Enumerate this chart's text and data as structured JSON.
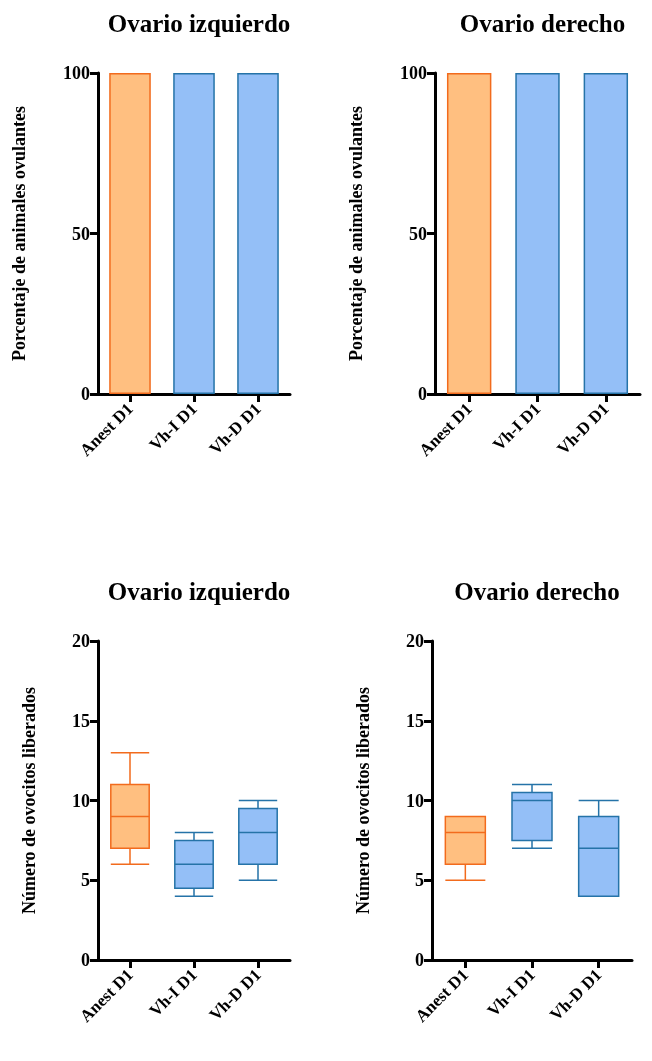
{
  "chart_data": [
    {
      "type": "bar",
      "title": "Ovario izquierdo",
      "ylabel": "Porcentaje de animales ovulantes",
      "categories": [
        "Anest D1",
        "Vh-I D1",
        "Vh-D D1"
      ],
      "values": [
        100,
        100,
        100
      ],
      "colors": [
        "#ffbf80",
        "#94bff7",
        "#94bff7"
      ],
      "ylim": [
        0,
        100
      ],
      "yticks": [
        0,
        50,
        100
      ]
    },
    {
      "type": "bar",
      "title": "Ovario derecho",
      "ylabel": "Porcentaje de animales ovulantes",
      "categories": [
        "Anest D1",
        "Vh-I D1",
        "Vh-D D1"
      ],
      "values": [
        100,
        100,
        100
      ],
      "colors": [
        "#ffbf80",
        "#94bff7",
        "#94bff7"
      ],
      "ylim": [
        0,
        100
      ],
      "yticks": [
        0,
        50,
        100
      ]
    },
    {
      "type": "box",
      "title": "Ovario izquierdo",
      "ylabel": "Número de ovocitos liberados",
      "categories": [
        "Anest D1",
        "Vh-I D1",
        "Vh-D D1"
      ],
      "colors": [
        "#ffbf80",
        "#94bff7",
        "#94bff7"
      ],
      "ylim": [
        0,
        20
      ],
      "yticks": [
        0,
        5,
        10,
        15,
        20
      ],
      "boxes": [
        {
          "low": 6,
          "q1": 7,
          "median": 9,
          "q3": 11,
          "high": 13
        },
        {
          "low": 4,
          "q1": 4.5,
          "median": 6,
          "q3": 7.5,
          "high": 8
        },
        {
          "low": 5,
          "q1": 6,
          "median": 8,
          "q3": 9.5,
          "high": 10
        }
      ]
    },
    {
      "type": "box",
      "title": "Ovario derecho",
      "ylabel": "Número de ovocitos liberados",
      "categories": [
        "Anest D1",
        "Vh-I D1",
        "Vh-D D1"
      ],
      "colors": [
        "#ffbf80",
        "#94bff7",
        "#94bff7"
      ],
      "ylim": [
        0,
        20
      ],
      "yticks": [
        0,
        5,
        10,
        15,
        20
      ],
      "boxes": [
        {
          "low": 5,
          "q1": 6,
          "median": 8,
          "q3": 9,
          "high": 9
        },
        {
          "low": 7,
          "q1": 7.5,
          "median": 10,
          "q3": 10.5,
          "high": 11
        },
        {
          "low": 4,
          "q1": 4,
          "median": 7,
          "q3": 9,
          "high": 10
        }
      ]
    }
  ]
}
